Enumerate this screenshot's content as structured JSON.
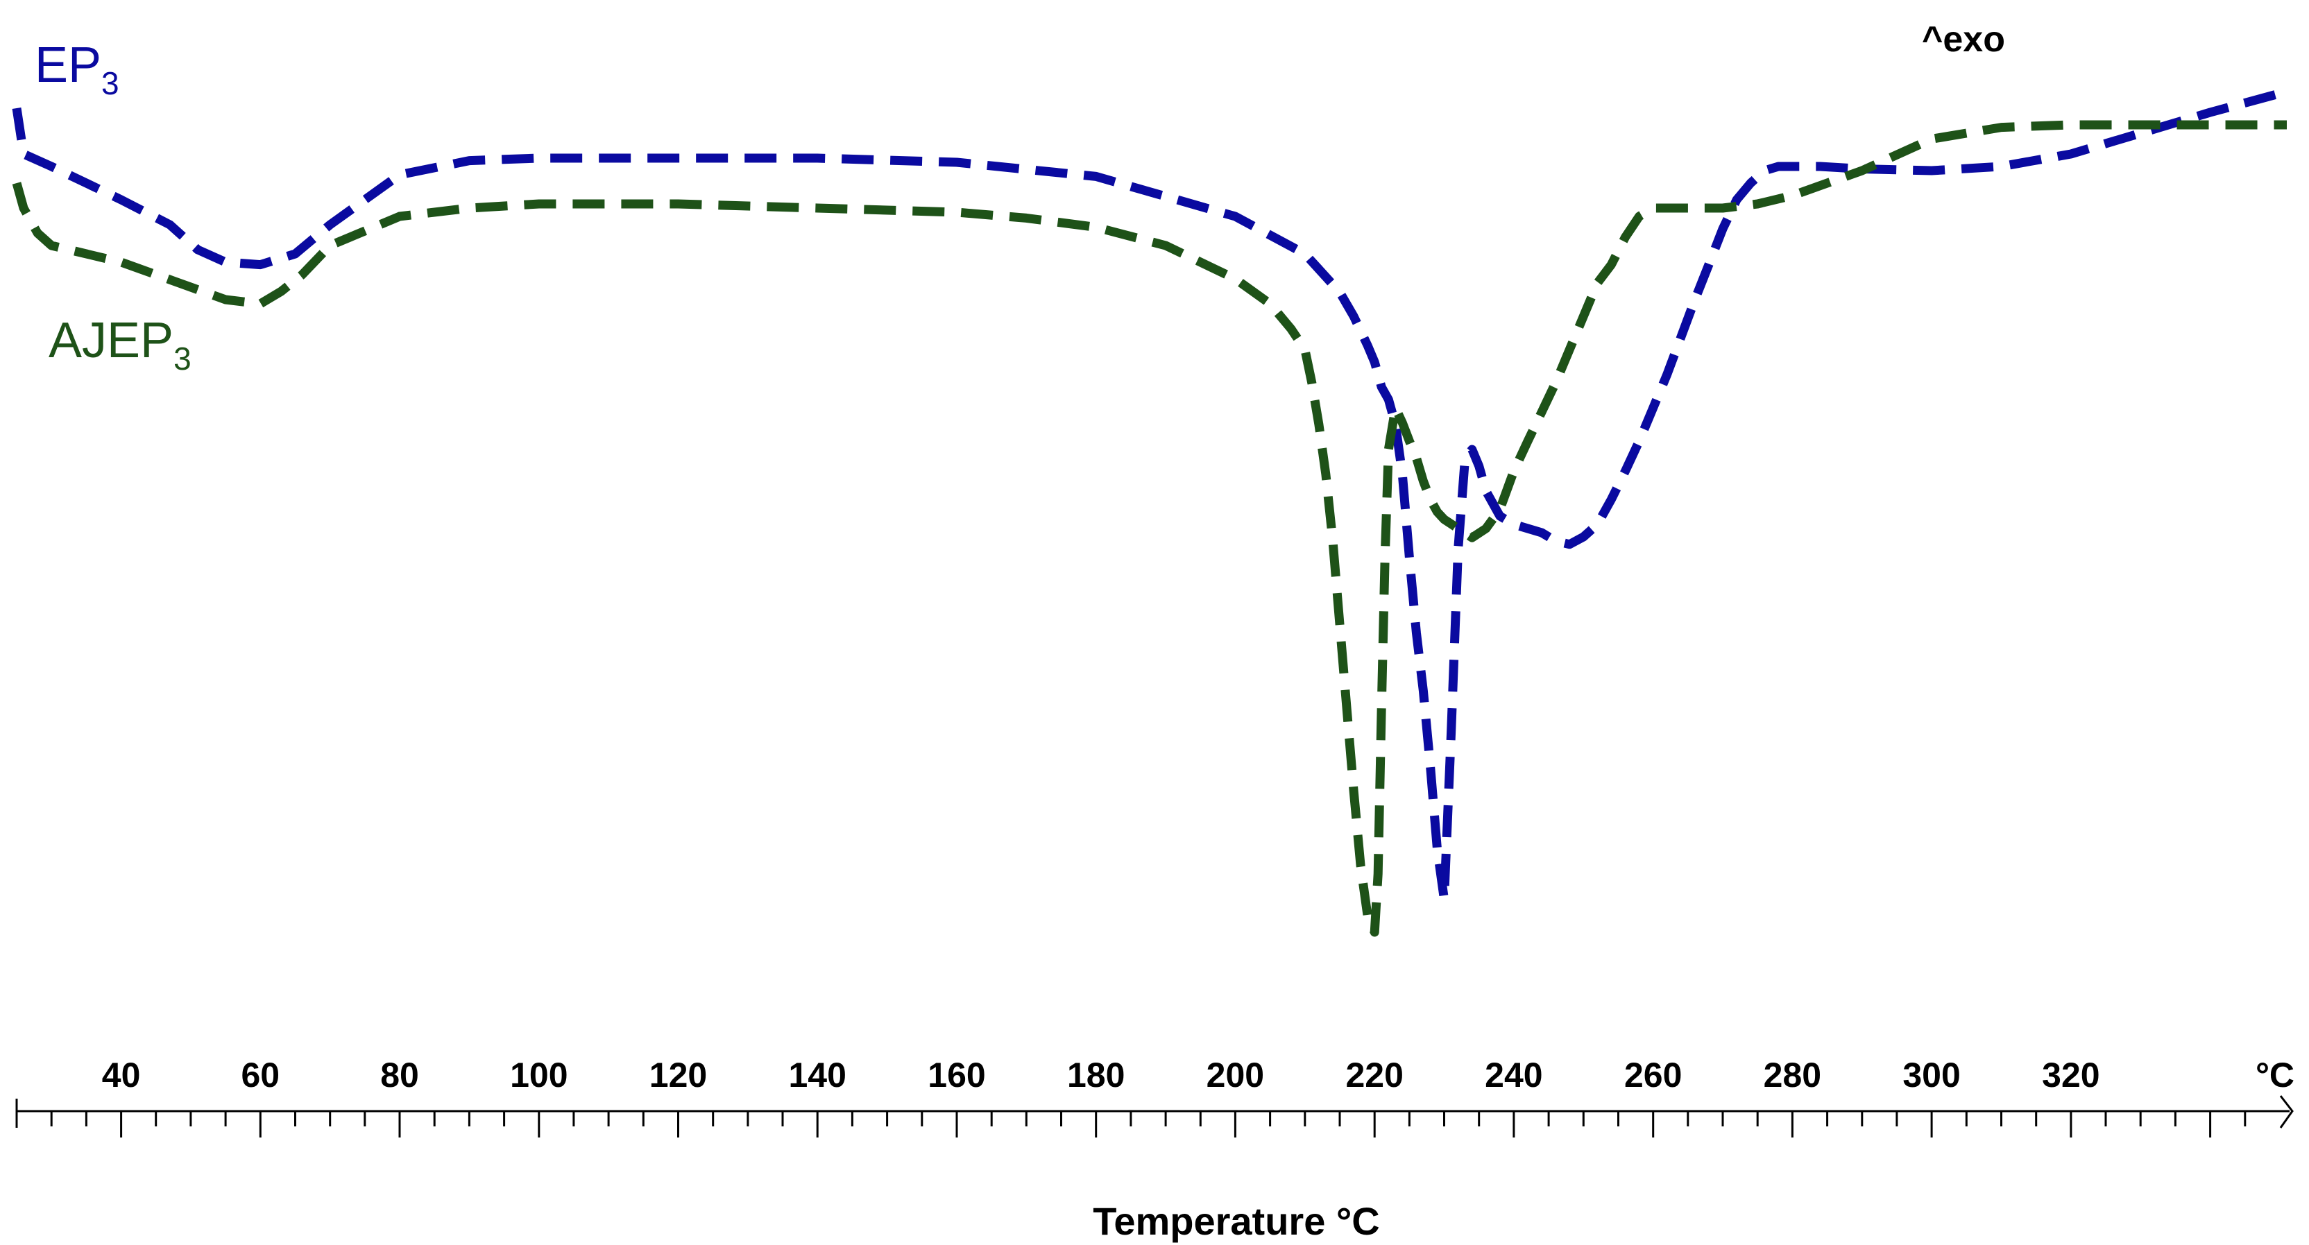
{
  "chart_data": {
    "type": "line",
    "title": "",
    "xlabel": "Temperature °C",
    "ylabel": "",
    "xlim": [
      25,
      351
    ],
    "ylim": [
      -100,
      10
    ],
    "grid": false,
    "legend": "inline",
    "x_unit_label": "°C",
    "annotation": "^exo",
    "x_ticks": [
      40,
      60,
      80,
      100,
      120,
      140,
      160,
      180,
      200,
      220,
      240,
      260,
      280,
      300,
      320
    ],
    "x_tick_labels": [
      "40",
      "60",
      "80",
      "100",
      "120",
      "140",
      "160",
      "180",
      "200",
      "220",
      "240",
      "260",
      "280",
      "300",
      "320"
    ],
    "series": [
      {
        "name": "EP3",
        "label_main": "EP",
        "label_sub": "3",
        "color": "#0a0aa0",
        "x": [
          25,
          26,
          30,
          40,
          47,
          51,
          55,
          60,
          65,
          70,
          80,
          90,
          100,
          120,
          140,
          160,
          180,
          200,
          210,
          215,
          217,
          219,
          220,
          221,
          222,
          223,
          224,
          225,
          226,
          227,
          228,
          229,
          230,
          231,
          232,
          233,
          234,
          235,
          236,
          238,
          240,
          242,
          244,
          246,
          248,
          250,
          252,
          254,
          256,
          258,
          260,
          262,
          264,
          266,
          268,
          270,
          272,
          274,
          276,
          278,
          280,
          284,
          290,
          300,
          310,
          320,
          330,
          340,
          351
        ],
        "y": [
          2,
          -3.5,
          -5,
          -9,
          -12,
          -15,
          -16.5,
          -16.8,
          -15.5,
          -12,
          -6,
          -4.3,
          -4,
          -4,
          -4,
          -4.5,
          -6.2,
          -11,
          -15.5,
          -20.1,
          -23,
          -26.5,
          -28.5,
          -31.5,
          -33,
          -36,
          -42,
          -52,
          -61,
          -68,
          -77,
          -87,
          -93,
          -73,
          -51,
          -40,
          -39,
          -41,
          -44,
          -47,
          -48,
          -48.5,
          -49,
          -50,
          -50.4,
          -49.5,
          -48,
          -45,
          -41.6,
          -38,
          -34,
          -30,
          -25.5,
          -21,
          -16.8,
          -12.5,
          -9,
          -7,
          -5.5,
          -5,
          -5,
          -5,
          -5.3,
          -5.5,
          -5,
          -3.5,
          -1,
          1.5,
          4
        ]
      },
      {
        "name": "AJEP3",
        "label_main": "AJEP",
        "label_sub": "3",
        "color": "#1e5218",
        "x": [
          25,
          26,
          28,
          30,
          40,
          50,
          55,
          60,
          63,
          66,
          70,
          80,
          90,
          100,
          120,
          140,
          160,
          170,
          180,
          190,
          200,
          205,
          208,
          210,
          211,
          212,
          213,
          214,
          215,
          216,
          217,
          218,
          219,
          220,
          220.5,
          221,
          221.5,
          222,
          223,
          224,
          225,
          226,
          227,
          228,
          229,
          230,
          232,
          234,
          236,
          238,
          240,
          242,
          244,
          246,
          248,
          250,
          252,
          254,
          256,
          258,
          260,
          262,
          264,
          266,
          268,
          270,
          275,
          280,
          290,
          300,
          310,
          320,
          330,
          340,
          351
        ],
        "y": [
          -7,
          -10,
          -13,
          -14.5,
          -16.5,
          -19.5,
          -21,
          -21.5,
          -20,
          -18,
          -14.5,
          -11,
          -10,
          -9.5,
          -9.5,
          -10,
          -10.5,
          -11.2,
          -12.3,
          -14.5,
          -18.5,
          -21.5,
          -24.5,
          -27,
          -31,
          -36,
          -42,
          -50,
          -60,
          -70,
          -80,
          -89,
          -95,
          -97,
          -90,
          -70,
          -52,
          -39,
          -34,
          -35.8,
          -38,
          -40,
          -42.8,
          -45,
          -46.5,
          -47.4,
          -48.5,
          -49.6,
          -48.5,
          -46.2,
          -41.6,
          -38,
          -34.5,
          -31,
          -27,
          -23,
          -19,
          -16.8,
          -13.5,
          -11,
          -10,
          -10,
          -10,
          -10,
          -10,
          -10,
          -9.5,
          -8.5,
          -5.5,
          -1.7,
          -0.3,
          0,
          0,
          0,
          0
        ]
      }
    ]
  }
}
